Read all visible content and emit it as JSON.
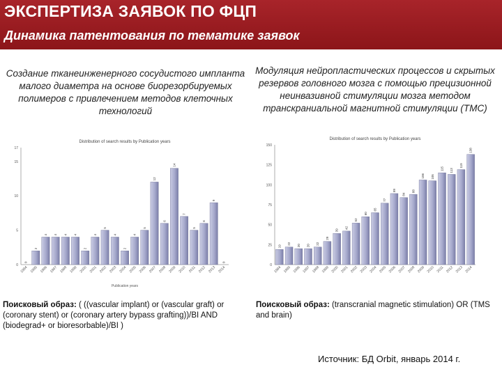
{
  "header": {
    "title": "ЭКСПЕРТИЗА ЗАЯВОК ПО ФЦП",
    "subtitle": "Динамика патентования по тематике заявок",
    "bg_color": "#9a1b20"
  },
  "left": {
    "topic": "Создание тканеинженерного сосудистого импланта малого диаметра на основе биорезорбируемых полимеров с привлечением методов клеточных технологий",
    "query_label": "Поисковый образ:",
    "query_text": " ( ((vascular implant) or (vascular graft) or (coronary stent) or (coronary artery bypass grafting))/BI AND (biodegrad+ or bioresorbable)/BI )"
  },
  "right": {
    "topic": "Модуляция нейропластических процессов и скрытых резервов головного мозга с помощью прецизионной неинвазивной стимуляции мозга методом транскраниальной магнитной стимуляции (ТМС)",
    "query_label": "Поисковый образ:",
    "query_text": " (transcranial magnetic stimulation) OR (TMS and brain)"
  },
  "source": "Источник: БД Orbit, январь 2014 г.",
  "chart_data": [
    {
      "type": "bar",
      "title": "Distribution of search results by Publication years",
      "xlabel": "Publication years",
      "ylabel": "",
      "categories": [
        "1994",
        "1995",
        "1996",
        "1997",
        "1998",
        "1999",
        "2000",
        "2001",
        "2002",
        "2003",
        "2004",
        "2005",
        "2006",
        "2007",
        "2008",
        "2009",
        "2010",
        "2011",
        "2012",
        "2013",
        "2014"
      ],
      "values": [
        0,
        2,
        4,
        4,
        4,
        4,
        2,
        4,
        5,
        4,
        2,
        4,
        5,
        12,
        6,
        14,
        7,
        5,
        6,
        9,
        0
      ],
      "ylim": [
        0,
        17
      ],
      "yticks": [
        0,
        5,
        10,
        15,
        17
      ],
      "bar_color": "#a6a9cc",
      "grid": false
    },
    {
      "type": "bar",
      "title": "Distribution of search results by Publication years",
      "xlabel": "",
      "ylabel": "",
      "categories": [
        "1994",
        "1995",
        "1996",
        "1997",
        "1998",
        "1999",
        "2000",
        "2001",
        "2002",
        "2003",
        "2004",
        "2005",
        "2006",
        "2007",
        "2008",
        "2009",
        "2010",
        "2011",
        "2012",
        "2013",
        "2014"
      ],
      "values": [
        19,
        22,
        20,
        20,
        22,
        29,
        39,
        42,
        52,
        60,
        65,
        77,
        89,
        84,
        88,
        106,
        105,
        115,
        113,
        119,
        138
      ],
      "ylim": [
        0,
        150
      ],
      "yticks": [
        0,
        25,
        50,
        75,
        100,
        125,
        150
      ],
      "bar_color": "#a6a9cc",
      "grid": false
    }
  ]
}
